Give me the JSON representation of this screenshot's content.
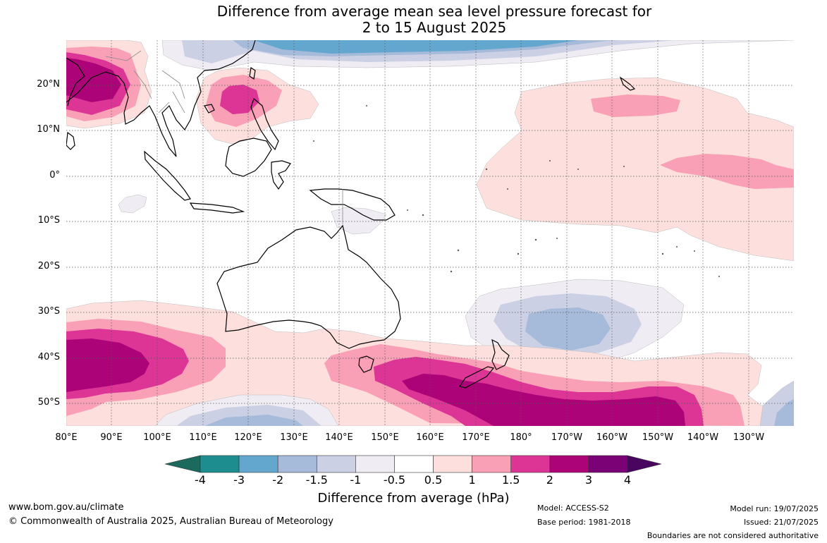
{
  "title": {
    "line1": "Difference from average mean sea level pressure forecast for",
    "line2": "2 to 15 August 2025"
  },
  "map": {
    "lat_ticks": [
      "20°N",
      "10°N",
      "0°",
      "10°S",
      "20°S",
      "30°S",
      "40°S",
      "50°S"
    ],
    "lon_ticks": [
      "80°E",
      "90°E",
      "100°E",
      "110°E",
      "120°E",
      "130°E",
      "140°E",
      "150°E",
      "160°E",
      "170°E",
      "180°",
      "170°W",
      "160°W",
      "150°W",
      "140°W",
      "130°W"
    ],
    "anomaly_regions": [
      {
        "name": "Bay of Bengal high",
        "level": 3
      },
      {
        "name": "South China Sea high",
        "level": 1.5
      },
      {
        "name": "North Pacific low",
        "level": -1.5
      },
      {
        "name": "Central Pacific high",
        "level": 1
      },
      {
        "name": "Southern Indian Ocean high",
        "level": 3
      },
      {
        "name": "Tasman Sea high",
        "level": 3
      },
      {
        "name": "South Pacific low",
        "level": -1.5
      }
    ]
  },
  "colorbar": {
    "title": "Difference from average (hPa)",
    "labels": [
      "-4",
      "-3",
      "-2",
      "-1.5",
      "-1",
      "-0.5",
      "0.5",
      "1",
      "1.5",
      "2",
      "3",
      "4"
    ],
    "colors": [
      "#1a6b5d",
      "#1d8d8f",
      "#63a7cf",
      "#a6bad9",
      "#ccd0e4",
      "#efecf3",
      "#ffffff",
      "#fde0dd",
      "#f99fb6",
      "#dc3596",
      "#ad0379",
      "#7a0176",
      "#4a0560"
    ]
  },
  "footer": {
    "website": "www.bom.gov.au/climate",
    "copyright": "© Commonwealth of Australia 2025, Australian Bureau of Meteorology",
    "model": "Model: ACCESS-S2",
    "base_period": "Base period: 1981-2018",
    "model_run": "Model run: 19/07/2025",
    "issued": "Issued: 21/07/2025",
    "disclaimer": "Boundaries are not considered authoritative"
  }
}
